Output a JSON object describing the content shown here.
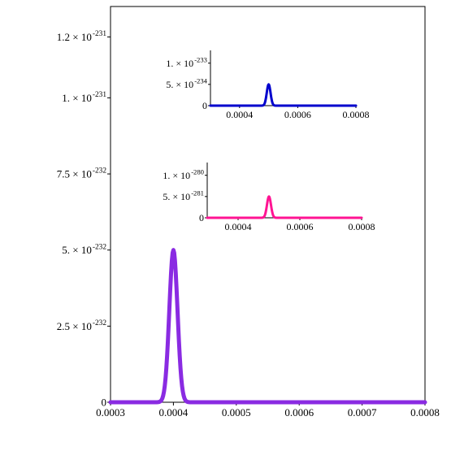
{
  "chart_data": [
    {
      "type": "line",
      "role": "main",
      "title": "",
      "xlabel": "",
      "ylabel": "",
      "xlim": [
        0.0003,
        0.0008
      ],
      "ylim": [
        0,
        1.3e-231
      ],
      "x_ticks": [
        {
          "value": 0.0003,
          "label": "0.0003"
        },
        {
          "value": 0.0004,
          "label": "0.0004"
        },
        {
          "value": 0.0005,
          "label": "0.0005"
        },
        {
          "value": 0.0006,
          "label": "0.0006"
        },
        {
          "value": 0.0007,
          "label": "0.0007"
        },
        {
          "value": 0.0008,
          "label": "0.0008"
        }
      ],
      "y_ticks": [
        {
          "value": 0,
          "mantissa": "0",
          "exponent": ""
        },
        {
          "value": 2.5e-232,
          "mantissa": "2.5 × 10",
          "exponent": "-232"
        },
        {
          "value": 5e-232,
          "mantissa": "5. × 10",
          "exponent": "-232"
        },
        {
          "value": 7.5e-232,
          "mantissa": "7.5 × 10",
          "exponent": "-232"
        },
        {
          "value": 1e-231,
          "mantissa": "1. × 10",
          "exponent": "-231"
        },
        {
          "value": 1.2e-231,
          "mantissa": "1.2 × 10",
          "exponent": "-231"
        }
      ],
      "series": [
        {
          "color": "#8a2be2",
          "peak_x": 0.0004,
          "peak_y": 5e-232,
          "width": 6.5e-06,
          "x_start": 0.0003,
          "x_end": 0.0008
        }
      ],
      "grid": false,
      "legend": "none"
    },
    {
      "type": "line",
      "role": "inset-top",
      "title": "",
      "xlabel": "",
      "ylabel": "",
      "xlim": [
        0.0003,
        0.0008
      ],
      "ylim": [
        0,
        1.3e-233
      ],
      "x_ticks": [
        {
          "value": 0.0004,
          "label": "0.0004"
        },
        {
          "value": 0.0006,
          "label": "0.0006"
        },
        {
          "value": 0.0008,
          "label": "0.0008"
        }
      ],
      "y_ticks": [
        {
          "value": 0,
          "mantissa": "0",
          "exponent": ""
        },
        {
          "value": 5e-234,
          "mantissa": "5. × 10",
          "exponent": "-234"
        },
        {
          "value": 1e-233,
          "mantissa": "1. × 10",
          "exponent": "-233"
        }
      ],
      "series": [
        {
          "color": "#0000cd",
          "peak_x": 0.0005,
          "peak_y": 5e-234,
          "width": 6.5e-06,
          "x_start": 0.0003,
          "x_end": 0.0008
        }
      ],
      "grid": false,
      "legend": "none"
    },
    {
      "type": "line",
      "role": "inset-bottom",
      "title": "",
      "xlabel": "",
      "ylabel": "",
      "xlim": [
        0.0003,
        0.0008
      ],
      "ylim": [
        0,
        1.3e-280
      ],
      "x_ticks": [
        {
          "value": 0.0004,
          "label": "0.0004"
        },
        {
          "value": 0.0006,
          "label": "0.0006"
        },
        {
          "value": 0.0008,
          "label": "0.0008"
        }
      ],
      "y_ticks": [
        {
          "value": 0,
          "mantissa": "0",
          "exponent": ""
        },
        {
          "value": 5e-281,
          "mantissa": "5. × 10",
          "exponent": "-281"
        },
        {
          "value": 1e-280,
          "mantissa": "1. × 10",
          "exponent": "-280"
        }
      ],
      "series": [
        {
          "color": "#ff1493",
          "peak_x": 0.0005,
          "peak_y": 5e-281,
          "width": 6.5e-06,
          "x_start": 0.0003,
          "x_end": 0.0008
        }
      ],
      "grid": false,
      "legend": "none"
    }
  ]
}
